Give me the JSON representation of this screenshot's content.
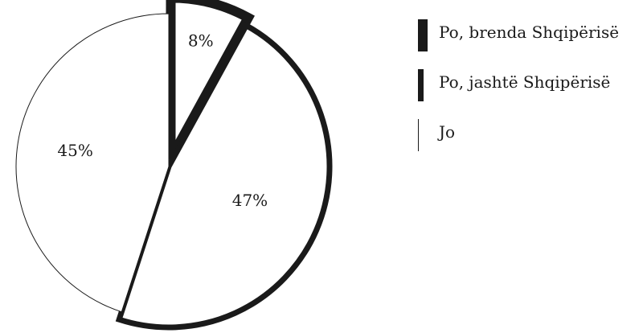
{
  "chart_data": {
    "type": "pie",
    "title": "",
    "categories": [
      "Po, brenda Shqipërisë",
      "Po, jashtë Shqipërisë",
      "Jo"
    ],
    "values": [
      8,
      47,
      45
    ],
    "labels": [
      "8%",
      "47%",
      "45%"
    ],
    "colors": [
      "#1a1a1a",
      "#1a1a1a",
      "#1a1a1a"
    ],
    "legend_position": "right"
  }
}
